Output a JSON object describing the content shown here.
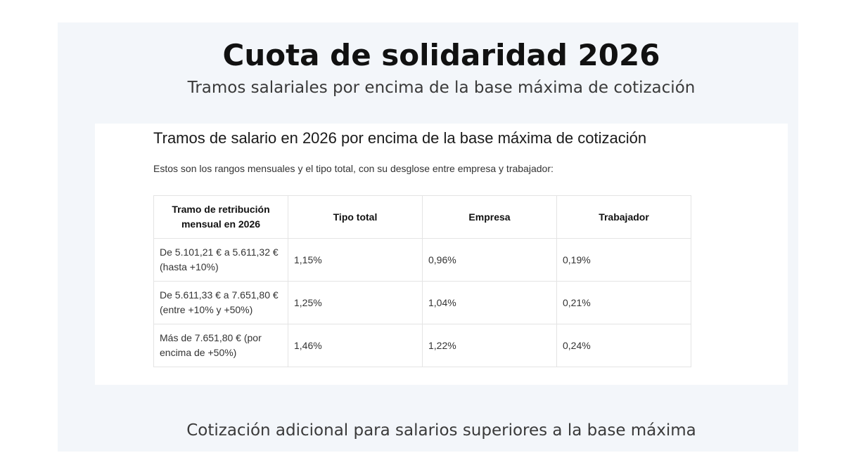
{
  "header": {
    "title": "Cuota de solidaridad 2026",
    "subtitle": "Tramos salariales por encima de la base máxima de cotización"
  },
  "card": {
    "heading": "Tramos de salario en 2026 por encima de la base máxima de cotización",
    "intro": "Estos son los rangos mensuales y el tipo total, con su desglose entre empresa y trabajador:",
    "columns": [
      "Tramo de retribución mensual en 2026",
      "Tipo total",
      "Empresa",
      "Trabajador"
    ],
    "rows": [
      {
        "tramo": "De 5.101,21 € a 5.611,32 € (hasta +10%)",
        "total": "1,15%",
        "empresa": "0,96%",
        "trabajador": "0,19%"
      },
      {
        "tramo": "De 5.611,33 € a 7.651,80 € (entre +10% y +50%)",
        "total": "1,25%",
        "empresa": "1,04%",
        "trabajador": "0,21%"
      },
      {
        "tramo": "Más de 7.651,80 € (por encima de +50%)",
        "total": "1,46%",
        "empresa": "1,22%",
        "trabajador": "0,24%"
      }
    ]
  },
  "footer": {
    "caption": "Cotización adicional para salarios superiores a la base máxima"
  }
}
